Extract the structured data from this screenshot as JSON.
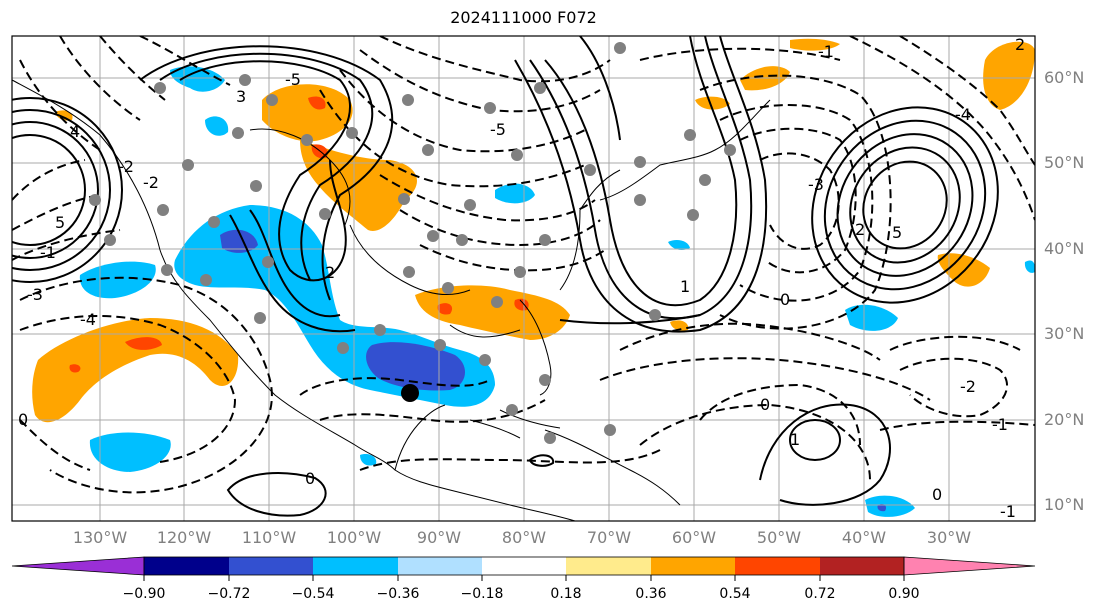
{
  "title": "2024111000 F072",
  "lat_labels": [
    "60°N",
    "50°N",
    "40°N",
    "30°N",
    "20°N",
    "10°N"
  ],
  "lon_labels": [
    "130°W",
    "120°W",
    "110°W",
    "100°W",
    "90°W",
    "80°W",
    "70°W",
    "60°W",
    "50°W",
    "40°W",
    "30°W"
  ],
  "colorbar": {
    "ticks": [
      "−0.90",
      "−0.72",
      "−0.54",
      "−0.36",
      "−0.18",
      "0.18",
      "0.36",
      "0.54",
      "0.72",
      "0.90"
    ],
    "colors": [
      "#9a2fd6",
      "#00008b",
      "#3350d0",
      "#00bfff",
      "#b0e0ff",
      "#ffffff",
      "#ffeb8c",
      "#ffa500",
      "#ff4500",
      "#b22222",
      "#ff82b0"
    ]
  },
  "contour_labels": [
    "-1",
    "-1",
    "-2",
    "-3",
    "-4",
    "-5",
    "-5",
    "0",
    "0",
    "0",
    "0",
    "1",
    "1",
    "2",
    "2",
    "3",
    "-2",
    "4",
    "5",
    "5",
    "-1",
    "-2",
    "-3",
    "0",
    "-4",
    "2",
    "-1"
  ],
  "fill_colors": {
    "orange": "#ffa500",
    "red": "#ff4500",
    "cyan": "#00bfff",
    "blue": "#3350d0"
  }
}
